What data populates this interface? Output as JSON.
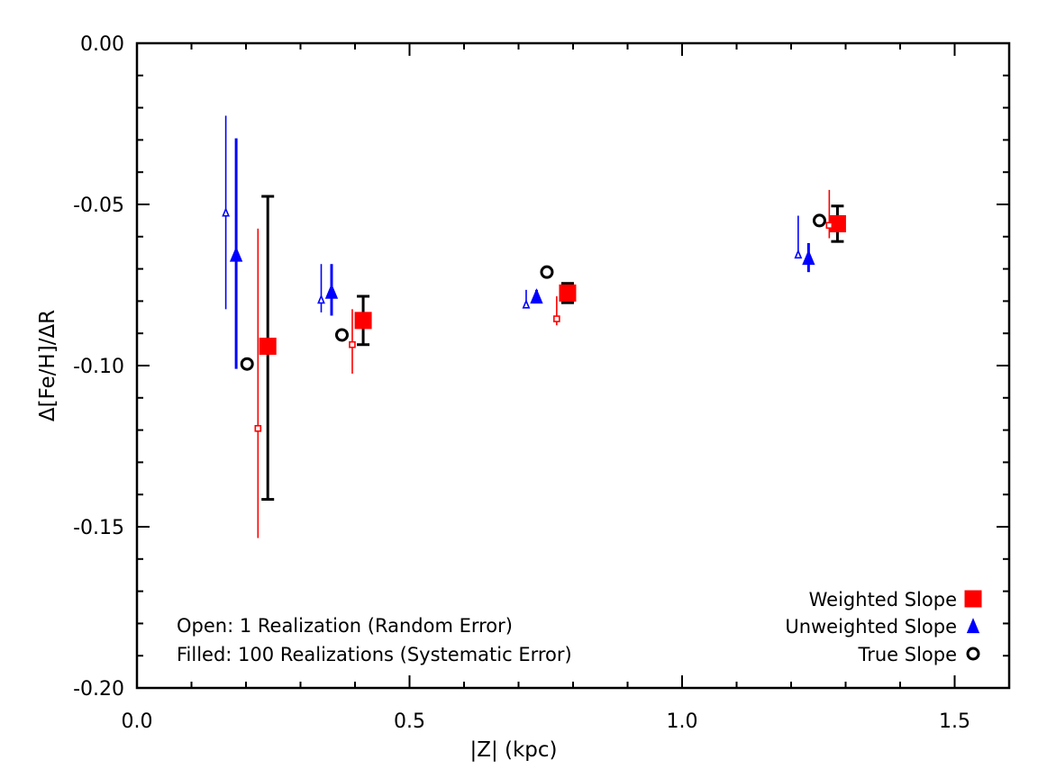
{
  "chart_data": {
    "type": "scatter",
    "xlabel": "|Z| (kpc)",
    "ylabel": "Δ[Fe/H]/ΔR",
    "xlim": [
      0.0,
      1.6
    ],
    "ylim": [
      -0.2,
      0.0
    ],
    "x_ticks": [
      {
        "value": 0.0,
        "label": "0.0"
      },
      {
        "value": 0.5,
        "label": "0.5"
      },
      {
        "value": 1.0,
        "label": "1.0"
      },
      {
        "value": 1.5,
        "label": "1.5"
      }
    ],
    "y_ticks": [
      {
        "value": 0.0,
        "label": "0.00"
      },
      {
        "value": -0.05,
        "label": "-0.05"
      },
      {
        "value": -0.1,
        "label": "-0.10"
      },
      {
        "value": -0.15,
        "label": "-0.15"
      },
      {
        "value": -0.2,
        "label": "-0.20"
      }
    ],
    "x_minor_step": 0.1,
    "y_minor_step": 0.01,
    "series": [
      {
        "name": "Weighted Slope (100 Realizations)",
        "marker": "square",
        "filled": true,
        "color": "#ff0000",
        "points": [
          {
            "x": 0.24,
            "y": -0.094,
            "ylo": -0.1415,
            "yhi": -0.0475,
            "err_color": "#000000"
          },
          {
            "x": 0.415,
            "y": -0.086,
            "ylo": -0.0935,
            "yhi": -0.0785,
            "err_color": "#000000"
          },
          {
            "x": 0.79,
            "y": -0.0775,
            "ylo": -0.0805,
            "yhi": -0.0745,
            "err_color": "#000000"
          },
          {
            "x": 1.285,
            "y": -0.056,
            "ylo": -0.0615,
            "yhi": -0.0505,
            "err_color": "#000000"
          }
        ]
      },
      {
        "name": "Weighted Slope (1 Realization)",
        "marker": "square",
        "filled": false,
        "color": "#ff0000",
        "points": [
          {
            "x": 0.222,
            "y": -0.1195,
            "ylo": -0.1535,
            "yhi": -0.0575
          },
          {
            "x": 0.395,
            "y": -0.0935,
            "ylo": -0.1025,
            "yhi": -0.0825
          },
          {
            "x": 0.77,
            "y": -0.0855,
            "ylo": -0.0875,
            "yhi": -0.0785
          },
          {
            "x": 1.27,
            "y": -0.0565,
            "ylo": -0.0605,
            "yhi": -0.0455
          }
        ]
      },
      {
        "name": "Unweighted Slope (100 Realizations)",
        "marker": "triangle",
        "filled": true,
        "color": "#0000ff",
        "points": [
          {
            "x": 0.182,
            "y": -0.0655,
            "ylo": -0.101,
            "yhi": -0.0295
          },
          {
            "x": 0.357,
            "y": -0.077,
            "ylo": -0.0845,
            "yhi": -0.0685
          },
          {
            "x": 0.733,
            "y": -0.0785,
            "ylo": -0.0795,
            "yhi": -0.0765
          },
          {
            "x": 1.232,
            "y": -0.0665,
            "ylo": -0.071,
            "yhi": -0.062
          }
        ]
      },
      {
        "name": "Unweighted Slope (1 Realization)",
        "marker": "triangle",
        "filled": false,
        "color": "#0000ff",
        "points": [
          {
            "x": 0.163,
            "y": -0.0525,
            "ylo": -0.0825,
            "yhi": -0.0225
          },
          {
            "x": 0.338,
            "y": -0.0795,
            "ylo": -0.0835,
            "yhi": -0.0685
          },
          {
            "x": 0.714,
            "y": -0.081,
            "ylo": -0.081,
            "yhi": -0.0765
          },
          {
            "x": 1.213,
            "y": -0.0655,
            "ylo": -0.0655,
            "yhi": -0.0535
          }
        ]
      },
      {
        "name": "True Slope",
        "marker": "circle",
        "filled": false,
        "color": "#000000",
        "points": [
          {
            "x": 0.202,
            "y": -0.0995
          },
          {
            "x": 0.376,
            "y": -0.0905
          },
          {
            "x": 0.752,
            "y": -0.071
          },
          {
            "x": 1.252,
            "y": -0.055
          }
        ]
      }
    ],
    "legend": {
      "position": "bottom-right",
      "entries": [
        {
          "label": "Weighted Slope",
          "marker": "square",
          "filled": true,
          "color": "#ff0000"
        },
        {
          "label": "Unweighted Slope",
          "marker": "triangle",
          "filled": true,
          "color": "#0000ff"
        },
        {
          "label": "True Slope",
          "marker": "circle",
          "filled": false,
          "color": "#000000"
        }
      ]
    },
    "annotations": [
      "Open: 1 Realization (Random Error)",
      "Filled: 100 Realizations (Systematic Error)"
    ]
  }
}
